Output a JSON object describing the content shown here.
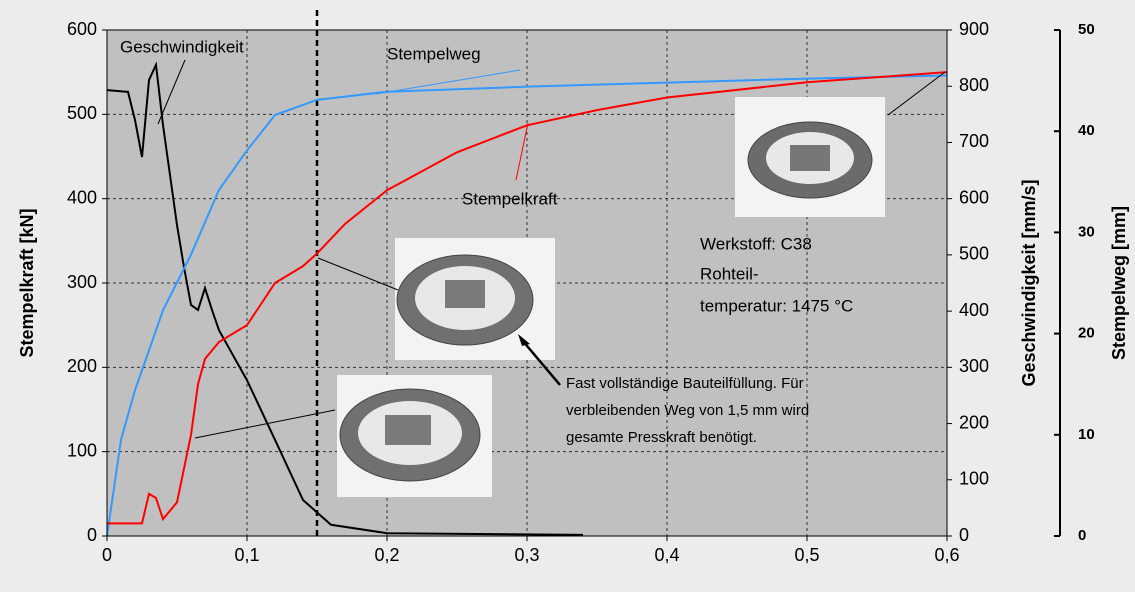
{
  "chart_data": {
    "type": "line",
    "x_label": null,
    "y_label": "Stempelkraft [kN]",
    "y2_label": "Geschwindigkeit [mm/s]",
    "y3_label": "Stempelweg [mm]",
    "xlim": [
      0,
      0.6
    ],
    "xticks": [
      {
        "value": 0,
        "label": "0"
      },
      {
        "value": 0.1,
        "label": "0,1"
      },
      {
        "value": 0.2,
        "label": "0,2"
      },
      {
        "value": 0.3,
        "label": "0,3"
      },
      {
        "value": 0.4,
        "label": "0,4"
      },
      {
        "value": 0.5,
        "label": "0,5"
      },
      {
        "value": 0.6,
        "label": "0,6"
      }
    ],
    "ylim": [
      0,
      600
    ],
    "yticks": [
      0,
      100,
      200,
      300,
      400,
      500,
      600
    ],
    "y2lim": [
      0,
      900
    ],
    "y2ticks": [
      0,
      100,
      200,
      300,
      400,
      500,
      600,
      700,
      800,
      900
    ],
    "y3lim": [
      0,
      50
    ],
    "y3ticks": [
      0,
      10,
      20,
      30,
      40,
      50
    ],
    "grid": true,
    "marker_x": 0.15,
    "series": [
      {
        "name": "Geschwindigkeit",
        "color": "#000000",
        "axis": "y2",
        "x": [
          0,
          0.015,
          0.02,
          0.025,
          0.03,
          0.035,
          0.04,
          0.05,
          0.055,
          0.06,
          0.065,
          0.07,
          0.075,
          0.08,
          0.1,
          0.12,
          0.14,
          0.16,
          0.2,
          0.34
        ],
        "values": [
          793,
          790,
          740,
          674,
          811,
          838,
          731,
          553,
          478,
          411,
          402,
          441,
          402,
          366,
          277,
          171,
          64,
          20,
          5,
          2
        ]
      },
      {
        "name": "Stempelweg",
        "color": "#3399ff",
        "axis": "y3",
        "x": [
          0,
          0.01,
          0.02,
          0.04,
          0.06,
          0.08,
          0.1,
          0.12,
          0.15,
          0.2,
          0.3,
          0.4,
          0.5,
          0.6
        ],
        "values": [
          0,
          9.5,
          14.4,
          22.3,
          27.8,
          34.2,
          38.1,
          41.6,
          43.1,
          43.9,
          44.4,
          44.8,
          45.2,
          45.5
        ]
      },
      {
        "name": "Stempelkraft",
        "color": "#ff0000",
        "axis": "y",
        "x": [
          0,
          0.025,
          0.03,
          0.035,
          0.04,
          0.05,
          0.06,
          0.065,
          0.07,
          0.08,
          0.1,
          0.12,
          0.14,
          0.15,
          0.17,
          0.2,
          0.25,
          0.3,
          0.35,
          0.4,
          0.5,
          0.6
        ],
        "values": [
          15,
          15,
          50,
          45,
          20,
          40,
          120,
          180,
          210,
          230,
          250,
          300,
          320,
          335,
          370,
          410,
          455,
          487,
          505,
          520,
          538,
          550
        ]
      }
    ],
    "annotations": {
      "material": "Werkstoff: C38",
      "temp1": "Rohteil-",
      "temp2": "temperatur: 1475 °C",
      "note1": "Fast vollständige Bauteilfüllung. Für",
      "note2": "verbleibenden Weg von 1,5 mm wird",
      "note3": "gesamte Presskraft benötigt."
    }
  }
}
